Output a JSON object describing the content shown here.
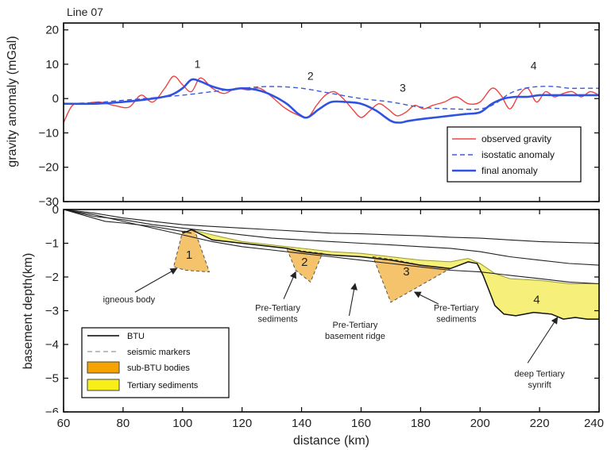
{
  "colors": {
    "observed": "#ef4444",
    "isostatic": "#3b5bdb",
    "final": "#2f52e0",
    "btu": "#000000",
    "seismic": "#888888",
    "sub_btu_fill": "#f5c36b",
    "sub_btu_stroke": "#555555",
    "tertiary_fill": "#f6f07a",
    "tertiary_stroke": "#9a9a30"
  },
  "chart_data": [
    {
      "type": "line",
      "title": "Line 07",
      "xlabel": "",
      "ylabel": "gravity anomaly (mGal)",
      "xlim": [
        60,
        240
      ],
      "ylim": [
        -30,
        22
      ],
      "yticks": [
        "20",
        "10",
        "0",
        "−10",
        "−20",
        "−30"
      ],
      "ytick_values": [
        20,
        10,
        0,
        -10,
        -20,
        -30
      ],
      "legend": "bottom-right",
      "peak_labels": [
        {
          "text": "1",
          "x": 105,
          "y": 9
        },
        {
          "text": "2",
          "x": 143,
          "y": 5.5
        },
        {
          "text": "3",
          "x": 174,
          "y": 2
        },
        {
          "text": "4",
          "x": 218,
          "y": 8.5
        }
      ],
      "series": [
        {
          "name": "observed gravity",
          "style": "solid",
          "x": [
            60,
            63,
            67,
            72,
            77,
            82,
            86,
            90,
            94,
            97,
            100,
            103,
            106,
            110,
            114,
            118,
            122,
            126,
            130,
            134,
            138,
            142,
            145,
            148,
            151,
            154,
            157,
            160,
            163,
            166,
            169,
            172,
            175,
            178,
            181,
            184,
            188,
            192,
            196,
            200,
            204,
            207,
            210,
            213,
            216,
            219,
            222,
            225,
            228,
            231,
            234,
            237,
            240
          ],
          "y": [
            -7,
            -2,
            -1.5,
            -1,
            -2,
            -2.5,
            1,
            -1,
            3,
            6.5,
            4,
            2,
            6,
            3,
            1.5,
            3,
            2.5,
            3,
            0.5,
            -2.5,
            -4.5,
            -5.5,
            -2,
            1,
            2,
            0,
            -3,
            -5.5,
            -3.5,
            -1.5,
            -3,
            -5,
            -4,
            -2,
            -3,
            -2,
            -1,
            0.5,
            -1.5,
            -1,
            3,
            1,
            -3,
            1,
            3,
            -1,
            2,
            0.5,
            1.5,
            2,
            0.5,
            2,
            1
          ]
        },
        {
          "name": "isostatic anomaly",
          "style": "dashed",
          "x": [
            60,
            70,
            80,
            90,
            100,
            110,
            120,
            130,
            140,
            150,
            160,
            170,
            180,
            190,
            200,
            205,
            210,
            215,
            220,
            225,
            230,
            235,
            240
          ],
          "y": [
            -1.5,
            -1.2,
            -0.5,
            0.2,
            1,
            2,
            3,
            3.5,
            3,
            1.5,
            0,
            -1,
            -2.5,
            -3,
            -3,
            -1.5,
            1.5,
            3,
            3.5,
            3.5,
            3,
            3,
            3
          ]
        },
        {
          "name": "final anomaly",
          "style": "solid",
          "x": [
            60,
            70,
            80,
            90,
            96,
            100,
            103,
            106,
            110,
            115,
            120,
            125,
            130,
            135,
            139,
            142,
            146,
            150,
            155,
            160,
            165,
            170,
            173,
            176,
            180,
            185,
            190,
            195,
            200,
            204,
            208,
            212,
            216,
            220,
            225,
            230,
            235,
            240
          ],
          "y": [
            -1.5,
            -1.5,
            -1,
            0,
            1,
            3,
            5.5,
            5,
            3.5,
            2.5,
            3,
            2.5,
            1,
            -1.5,
            -4.5,
            -5.5,
            -3,
            -1,
            -1,
            -1.5,
            -3.5,
            -6.5,
            -7,
            -6.5,
            -6,
            -5.5,
            -5,
            -4.5,
            -4,
            -1.5,
            0,
            0.5,
            0.5,
            1,
            1,
            1,
            1,
            1
          ]
        }
      ]
    },
    {
      "type": "area",
      "xlabel": "distance (km)",
      "ylabel": "basement depth(km)",
      "xlim": [
        60,
        240
      ],
      "ylim": [
        -6,
        0
      ],
      "xticks": [
        "60",
        "80",
        "100",
        "120",
        "140",
        "160",
        "180",
        "200",
        "220",
        "240"
      ],
      "xtick_values": [
        60,
        80,
        100,
        120,
        140,
        160,
        180,
        200,
        220,
        240
      ],
      "yticks": [
        "0",
        "−1",
        "−2",
        "−3",
        "−4",
        "−5",
        "−6"
      ],
      "ytick_values": [
        0,
        -1,
        -2,
        -3,
        -4,
        -5,
        -6
      ],
      "legend": "bottom-left",
      "legend_entries": [
        "BTU",
        "seismic markers",
        "sub-BTU bodies",
        "Tertiary sediments"
      ],
      "btu_lines": [
        {
          "x": [
            60,
            70,
            80,
            90,
            100,
            110,
            120,
            130,
            140,
            150,
            160,
            170,
            180,
            190,
            200,
            210,
            220,
            230,
            240
          ],
          "y": [
            0,
            -0.1,
            -0.25,
            -0.35,
            -0.45,
            -0.5,
            -0.55,
            -0.6,
            -0.65,
            -0.7,
            -0.72,
            -0.75,
            -0.78,
            -0.82,
            -0.85,
            -0.9,
            -0.95,
            -0.98,
            -1.0
          ]
        },
        {
          "x": [
            60,
            70,
            80,
            90,
            100,
            110,
            120,
            130,
            140,
            150,
            160,
            170,
            180,
            190,
            200,
            210,
            220,
            230,
            240
          ],
          "y": [
            0,
            -0.2,
            -0.3,
            -0.45,
            -0.55,
            -0.65,
            -0.75,
            -0.85,
            -0.9,
            -0.95,
            -1.0,
            -1.05,
            -1.1,
            -1.15,
            -1.25,
            -1.4,
            -1.5,
            -1.6,
            -1.65
          ]
        },
        {
          "x": [
            60,
            72,
            74,
            80,
            90,
            100,
            103
          ],
          "y": [
            0,
            -0.3,
            -0.35,
            -0.4,
            -0.5,
            -0.65,
            -0.7
          ]
        },
        {
          "x": [
            60,
            70,
            80,
            90,
            100,
            110,
            120,
            130,
            140,
            150,
            160,
            170,
            180,
            190,
            200,
            210,
            220,
            230,
            240
          ],
          "y": [
            0,
            -0.15,
            -0.35,
            -0.55,
            -0.75,
            -0.95,
            -1.1,
            -1.2,
            -1.3,
            -1.4,
            -1.5,
            -1.6,
            -1.7,
            -1.8,
            -1.85,
            -1.95,
            -2.05,
            -2.15,
            -2.2
          ]
        },
        {
          "x": [
            100,
            103,
            110,
            120,
            130,
            135,
            140,
            145,
            150,
            160,
            170,
            180,
            190,
            196,
            199,
            201,
            203,
            205,
            208,
            212,
            218,
            224,
            228,
            232,
            236,
            240
          ],
          "y": [
            -0.7,
            -0.6,
            -0.9,
            -1.0,
            -1.1,
            -1.15,
            -1.25,
            -1.3,
            -1.35,
            -1.4,
            -1.5,
            -1.65,
            -1.75,
            -1.55,
            -1.6,
            -1.95,
            -2.4,
            -2.85,
            -3.1,
            -3.15,
            -3.05,
            -3.1,
            -3.25,
            -3.2,
            -3.25,
            -3.25
          ]
        }
      ],
      "tertiary_sediments": {
        "top_x": [
          100,
          103,
          110,
          120,
          130,
          140,
          150,
          160,
          170,
          180,
          190,
          196,
          200,
          205,
          210,
          220,
          230,
          240
        ],
        "top_y": [
          -0.7,
          -0.6,
          -0.75,
          -0.95,
          -1.05,
          -1.15,
          -1.25,
          -1.3,
          -1.4,
          -1.5,
          -1.55,
          -1.45,
          -1.6,
          -1.9,
          -2.05,
          -2.1,
          -2.2,
          -2.2
        ],
        "bottom_x": [
          240,
          236,
          232,
          228,
          224,
          218,
          212,
          208,
          205,
          203,
          201,
          199,
          196,
          190,
          180,
          170,
          160,
          150,
          145,
          140,
          135,
          130,
          120,
          110,
          103,
          100
        ],
        "bottom_y": [
          -3.25,
          -3.25,
          -3.2,
          -3.25,
          -3.1,
          -3.05,
          -3.15,
          -3.1,
          -2.85,
          -2.4,
          -1.95,
          -1.6,
          -1.55,
          -1.75,
          -1.65,
          -1.5,
          -1.4,
          -1.35,
          -1.3,
          -1.25,
          -1.15,
          -1.1,
          -1.0,
          -0.9,
          -0.6,
          -0.7
        ]
      },
      "sub_btu_bodies": [
        {
          "label": "1",
          "x": [
            100,
            104,
            109,
            101,
            97
          ],
          "y": [
            -0.65,
            -0.6,
            -1.85,
            -1.8,
            -1.7
          ]
        },
        {
          "label": "2",
          "x": [
            135,
            142,
            147,
            143,
            138
          ],
          "y": [
            -1.15,
            -1.25,
            -1.3,
            -2.15,
            -1.8
          ]
        },
        {
          "label": "3",
          "x": [
            164,
            172,
            180,
            190,
            170
          ],
          "y": [
            -1.4,
            -1.5,
            -1.65,
            -1.75,
            -2.75
          ]
        }
      ],
      "area_labels": [
        {
          "text": "4",
          "x": 219,
          "y": -2.65
        }
      ],
      "annotations": [
        {
          "lines": [
            "igneous body"
          ],
          "x": 82,
          "y": -2.75,
          "ax": 98,
          "ay": -1.75,
          "tx": 84,
          "ty": -2.45
        },
        {
          "lines": [
            "Pre-Tertiary",
            "sediments"
          ],
          "x": 132,
          "y": -3.0,
          "ax": 138,
          "ay": -1.85,
          "tx": 134,
          "ty": -2.65
        },
        {
          "lines": [
            "Pre-Tertiary",
            "basement ridge"
          ],
          "x": 158,
          "y": -3.5,
          "ax": 158,
          "ay": -2.2,
          "tx": 156,
          "ty": -3.15
        },
        {
          "lines": [
            "Pre-Tertiary",
            "sediments"
          ],
          "x": 192,
          "y": -3.0,
          "ax": 178,
          "ay": -2.45,
          "tx": 186,
          "ty": -2.8
        },
        {
          "lines": [
            "deep Tertiary",
            "synrift"
          ],
          "x": 220,
          "y": -4.95,
          "ax": 226,
          "ay": -3.2,
          "tx": 216,
          "ty": -4.55
        }
      ]
    }
  ]
}
